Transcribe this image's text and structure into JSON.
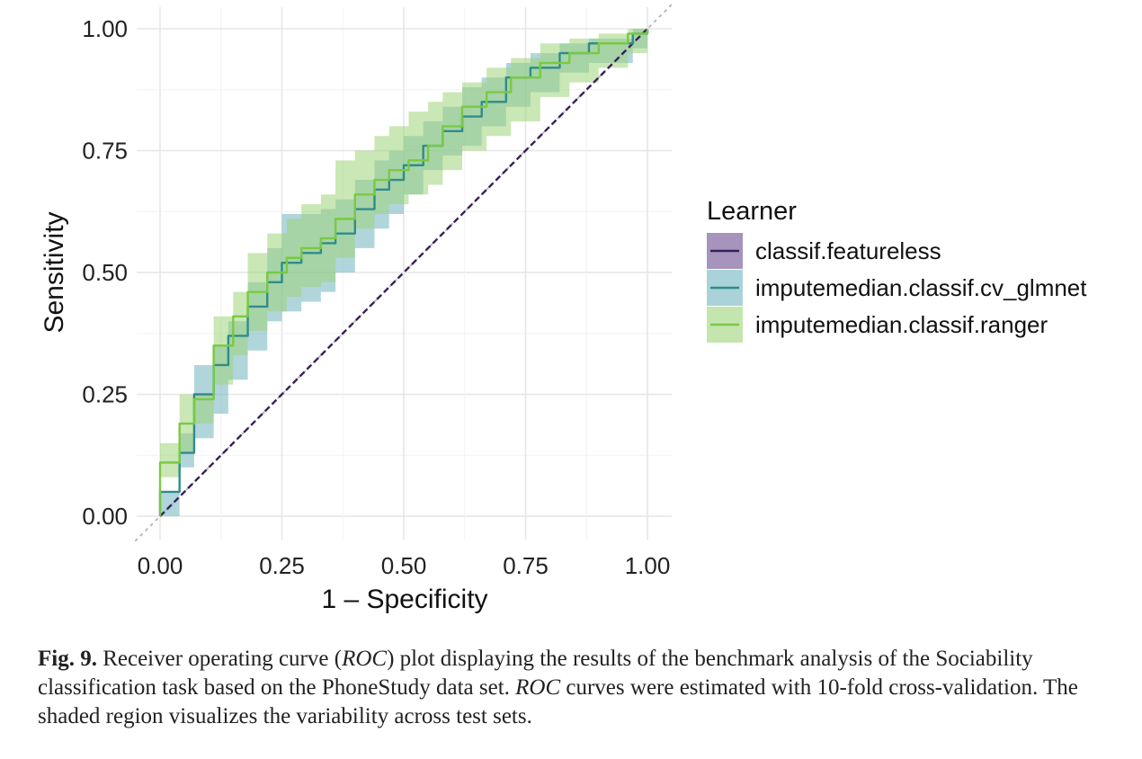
{
  "chart_data": {
    "type": "line",
    "xlabel": "1 – Specificity",
    "ylabel": "Sensitivity",
    "xlim": [
      0,
      1
    ],
    "ylim": [
      0,
      1
    ],
    "x_ticks": [
      "0.00",
      "0.25",
      "0.50",
      "0.75",
      "1.00"
    ],
    "y_ticks": [
      "0.00",
      "0.25",
      "0.50",
      "0.75",
      "1.00"
    ],
    "grid": true,
    "diagonal_reference": true,
    "legend": {
      "title": "Learner",
      "placement": "right"
    },
    "series": [
      {
        "name": "classif.featureless",
        "color": "#3a1f5c",
        "band_color": "#6b4c8f",
        "dashed": true,
        "points": [
          [
            0,
            0
          ],
          [
            1,
            1
          ]
        ],
        "band": []
      },
      {
        "name": "imputemedian.classif.cv_glmnet",
        "color": "#2f8c8c",
        "band_color": "#6fb5c0",
        "dashed": false,
        "points": [
          [
            0,
            0
          ],
          [
            0,
            0.05
          ],
          [
            0.04,
            0.05
          ],
          [
            0.04,
            0.13
          ],
          [
            0.07,
            0.13
          ],
          [
            0.07,
            0.25
          ],
          [
            0.11,
            0.25
          ],
          [
            0.11,
            0.31
          ],
          [
            0.14,
            0.31
          ],
          [
            0.14,
            0.37
          ],
          [
            0.18,
            0.37
          ],
          [
            0.18,
            0.43
          ],
          [
            0.22,
            0.43
          ],
          [
            0.22,
            0.48
          ],
          [
            0.25,
            0.48
          ],
          [
            0.25,
            0.52
          ],
          [
            0.29,
            0.52
          ],
          [
            0.29,
            0.54
          ],
          [
            0.33,
            0.54
          ],
          [
            0.33,
            0.56
          ],
          [
            0.36,
            0.56
          ],
          [
            0.36,
            0.58
          ],
          [
            0.4,
            0.58
          ],
          [
            0.4,
            0.63
          ],
          [
            0.44,
            0.63
          ],
          [
            0.44,
            0.67
          ],
          [
            0.47,
            0.67
          ],
          [
            0.47,
            0.69
          ],
          [
            0.5,
            0.69
          ],
          [
            0.5,
            0.72
          ],
          [
            0.54,
            0.72
          ],
          [
            0.54,
            0.76
          ],
          [
            0.58,
            0.76
          ],
          [
            0.58,
            0.79
          ],
          [
            0.62,
            0.79
          ],
          [
            0.62,
            0.82
          ],
          [
            0.66,
            0.82
          ],
          [
            0.66,
            0.85
          ],
          [
            0.71,
            0.85
          ],
          [
            0.71,
            0.9
          ],
          [
            0.76,
            0.9
          ],
          [
            0.76,
            0.92
          ],
          [
            0.82,
            0.92
          ],
          [
            0.82,
            0.95
          ],
          [
            0.88,
            0.95
          ],
          [
            0.88,
            0.97
          ],
          [
            0.97,
            0.97
          ],
          [
            0.97,
            0.99
          ],
          [
            1,
            0.99
          ],
          [
            1,
            1
          ]
        ],
        "band": [
          [
            0,
            0,
            0.05
          ],
          [
            0.04,
            0.1,
            0.17
          ],
          [
            0.07,
            0.16,
            0.31
          ],
          [
            0.11,
            0.21,
            0.35
          ],
          [
            0.14,
            0.28,
            0.4
          ],
          [
            0.18,
            0.34,
            0.48
          ],
          [
            0.22,
            0.4,
            0.55
          ],
          [
            0.25,
            0.42,
            0.62
          ],
          [
            0.29,
            0.44,
            0.62
          ],
          [
            0.33,
            0.46,
            0.63
          ],
          [
            0.36,
            0.5,
            0.65
          ],
          [
            0.4,
            0.55,
            0.69
          ],
          [
            0.44,
            0.59,
            0.73
          ],
          [
            0.47,
            0.62,
            0.75
          ],
          [
            0.5,
            0.66,
            0.78
          ],
          [
            0.54,
            0.71,
            0.81
          ],
          [
            0.58,
            0.74,
            0.84
          ],
          [
            0.62,
            0.76,
            0.88
          ],
          [
            0.66,
            0.8,
            0.9
          ],
          [
            0.71,
            0.84,
            0.93
          ],
          [
            0.76,
            0.87,
            0.95
          ],
          [
            0.82,
            0.91,
            0.97
          ],
          [
            0.88,
            0.93,
            0.98
          ],
          [
            0.97,
            0.96,
            1.0
          ],
          [
            1,
            0.98,
            1.0
          ]
        ]
      },
      {
        "name": "imputemedian.classif.ranger",
        "color": "#7ac943",
        "band_color": "#9ed47a",
        "dashed": false,
        "points": [
          [
            0,
            0
          ],
          [
            0,
            0.11
          ],
          [
            0.04,
            0.11
          ],
          [
            0.04,
            0.19
          ],
          [
            0.07,
            0.19
          ],
          [
            0.07,
            0.24
          ],
          [
            0.11,
            0.24
          ],
          [
            0.11,
            0.35
          ],
          [
            0.15,
            0.35
          ],
          [
            0.15,
            0.41
          ],
          [
            0.18,
            0.41
          ],
          [
            0.18,
            0.46
          ],
          [
            0.22,
            0.46
          ],
          [
            0.22,
            0.5
          ],
          [
            0.26,
            0.5
          ],
          [
            0.26,
            0.53
          ],
          [
            0.29,
            0.53
          ],
          [
            0.29,
            0.55
          ],
          [
            0.33,
            0.55
          ],
          [
            0.33,
            0.57
          ],
          [
            0.36,
            0.57
          ],
          [
            0.36,
            0.61
          ],
          [
            0.4,
            0.61
          ],
          [
            0.4,
            0.66
          ],
          [
            0.44,
            0.66
          ],
          [
            0.44,
            0.69
          ],
          [
            0.47,
            0.69
          ],
          [
            0.47,
            0.71
          ],
          [
            0.51,
            0.71
          ],
          [
            0.51,
            0.73
          ],
          [
            0.55,
            0.73
          ],
          [
            0.55,
            0.76
          ],
          [
            0.58,
            0.76
          ],
          [
            0.58,
            0.8
          ],
          [
            0.62,
            0.8
          ],
          [
            0.62,
            0.84
          ],
          [
            0.67,
            0.84
          ],
          [
            0.67,
            0.87
          ],
          [
            0.72,
            0.87
          ],
          [
            0.72,
            0.9
          ],
          [
            0.78,
            0.9
          ],
          [
            0.78,
            0.93
          ],
          [
            0.84,
            0.93
          ],
          [
            0.84,
            0.95
          ],
          [
            0.9,
            0.95
          ],
          [
            0.9,
            0.97
          ],
          [
            0.96,
            0.97
          ],
          [
            0.96,
            0.99
          ],
          [
            1,
            0.99
          ],
          [
            1,
            1
          ]
        ],
        "band": [
          [
            0,
            0.08,
            0.15
          ],
          [
            0.04,
            0.13,
            0.25
          ],
          [
            0.07,
            0.19,
            0.25
          ],
          [
            0.11,
            0.27,
            0.41
          ],
          [
            0.15,
            0.33,
            0.46
          ],
          [
            0.18,
            0.38,
            0.54
          ],
          [
            0.22,
            0.42,
            0.58
          ],
          [
            0.26,
            0.45,
            0.61
          ],
          [
            0.29,
            0.47,
            0.64
          ],
          [
            0.33,
            0.48,
            0.66
          ],
          [
            0.36,
            0.53,
            0.73
          ],
          [
            0.4,
            0.59,
            0.75
          ],
          [
            0.44,
            0.62,
            0.78
          ],
          [
            0.47,
            0.64,
            0.8
          ],
          [
            0.51,
            0.66,
            0.83
          ],
          [
            0.55,
            0.68,
            0.85
          ],
          [
            0.58,
            0.71,
            0.87
          ],
          [
            0.62,
            0.75,
            0.89
          ],
          [
            0.67,
            0.78,
            0.92
          ],
          [
            0.72,
            0.81,
            0.94
          ],
          [
            0.78,
            0.86,
            0.97
          ],
          [
            0.84,
            0.89,
            0.98
          ],
          [
            0.9,
            0.92,
            0.99
          ],
          [
            0.96,
            0.95,
            1.0
          ],
          [
            1,
            0.98,
            1.0
          ]
        ]
      }
    ]
  },
  "caption": {
    "label": "Fig. 9.",
    "text_1": " Receiver operating curve (",
    "roc_1": "ROC",
    "text_2": ") plot displaying the results of the benchmark analysis of the Sociability classification task based on the PhoneStudy data set. ",
    "roc_2": "ROC",
    "text_3": " curves were estimated with 10-fold cross-validation. The shaded region visualizes the variability across test sets."
  }
}
